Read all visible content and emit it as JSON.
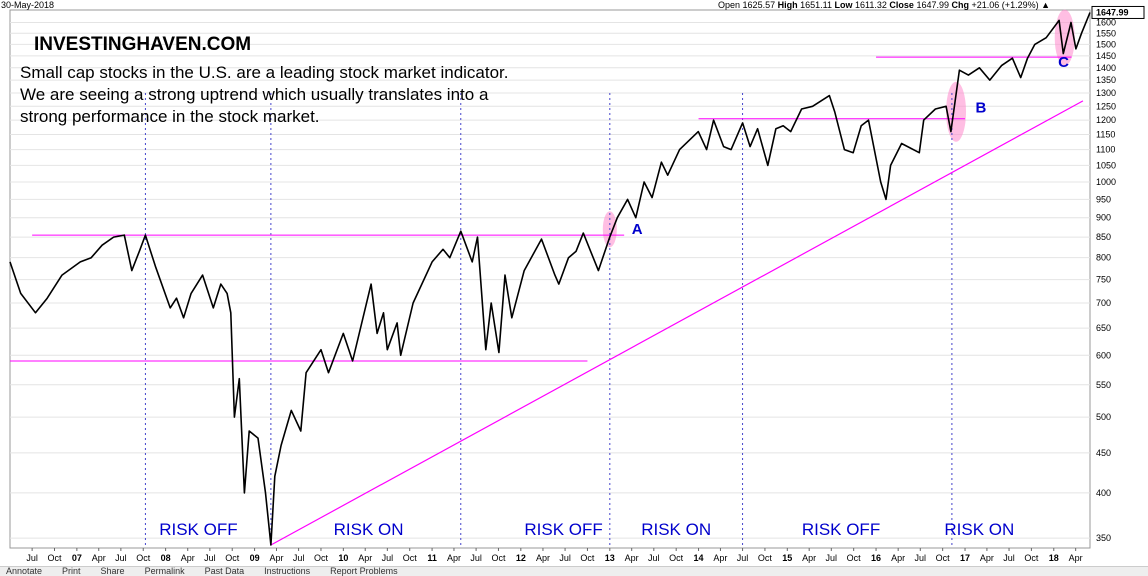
{
  "header": {
    "date": "30-May-2018",
    "open_label": "Open",
    "open": "1625.57",
    "high_label": "High",
    "high": "1651.11",
    "low_label": "Low",
    "low": "1611.32",
    "close_label": "Close",
    "close": "1647.99",
    "chg_label": "Chg",
    "chg": "+21.06 (+1.29%)",
    "up_arrow": "▲"
  },
  "brand": "INVESTINGHAVEN.COM",
  "subtitle": "Small cap stocks in the U.S. are a leading stock market indicator. We are seeing a strong uptrend which usually translates into a strong performance in the stock market.",
  "last_price_box": "1647.99",
  "toolbar": {
    "items": [
      "Annotate",
      "Print",
      "Share",
      "Permalink",
      "Past Data",
      "Instructions",
      "Report Problems"
    ]
  },
  "chart_data": {
    "type": "line",
    "title": "",
    "xlabel": "",
    "ylabel": "",
    "y_scale": "log",
    "ylim": [
      340,
      1660
    ],
    "xlim": [
      "2006-04-01",
      "2018-05-30"
    ],
    "y_ticks": [
      350,
      400,
      450,
      500,
      550,
      600,
      650,
      700,
      750,
      800,
      850,
      900,
      950,
      1000,
      1050,
      1100,
      1150,
      1200,
      1250,
      1300,
      1350,
      1400,
      1450,
      1500,
      1550,
      1600
    ],
    "x_tick_labels": [
      {
        "t": "2006-07-01",
        "label": "Jul",
        "major": false
      },
      {
        "t": "2006-10-01",
        "label": "Oct",
        "major": false
      },
      {
        "t": "2007-01-01",
        "label": "07",
        "major": true
      },
      {
        "t": "2007-04-01",
        "label": "Apr",
        "major": false
      },
      {
        "t": "2007-07-01",
        "label": "Jul",
        "major": false
      },
      {
        "t": "2007-10-01",
        "label": "Oct",
        "major": false
      },
      {
        "t": "2008-01-01",
        "label": "08",
        "major": true
      },
      {
        "t": "2008-04-01",
        "label": "Apr",
        "major": false
      },
      {
        "t": "2008-07-01",
        "label": "Jul",
        "major": false
      },
      {
        "t": "2008-10-01",
        "label": "Oct",
        "major": false
      },
      {
        "t": "2009-01-01",
        "label": "09",
        "major": true
      },
      {
        "t": "2009-04-01",
        "label": "Apr",
        "major": false
      },
      {
        "t": "2009-07-01",
        "label": "Jul",
        "major": false
      },
      {
        "t": "2009-10-01",
        "label": "Oct",
        "major": false
      },
      {
        "t": "2010-01-01",
        "label": "10",
        "major": true
      },
      {
        "t": "2010-04-01",
        "label": "Apr",
        "major": false
      },
      {
        "t": "2010-07-01",
        "label": "Jul",
        "major": false
      },
      {
        "t": "2010-10-01",
        "label": "Oct",
        "major": false
      },
      {
        "t": "2011-01-01",
        "label": "11",
        "major": true
      },
      {
        "t": "2011-04-01",
        "label": "Apr",
        "major": false
      },
      {
        "t": "2011-07-01",
        "label": "Jul",
        "major": false
      },
      {
        "t": "2011-10-01",
        "label": "Oct",
        "major": false
      },
      {
        "t": "2012-01-01",
        "label": "12",
        "major": true
      },
      {
        "t": "2012-04-01",
        "label": "Apr",
        "major": false
      },
      {
        "t": "2012-07-01",
        "label": "Jul",
        "major": false
      },
      {
        "t": "2012-10-01",
        "label": "Oct",
        "major": false
      },
      {
        "t": "2013-01-01",
        "label": "13",
        "major": true
      },
      {
        "t": "2013-04-01",
        "label": "Apr",
        "major": false
      },
      {
        "t": "2013-07-01",
        "label": "Jul",
        "major": false
      },
      {
        "t": "2013-10-01",
        "label": "Oct",
        "major": false
      },
      {
        "t": "2014-01-01",
        "label": "14",
        "major": true
      },
      {
        "t": "2014-04-01",
        "label": "Apr",
        "major": false
      },
      {
        "t": "2014-07-01",
        "label": "Jul",
        "major": false
      },
      {
        "t": "2014-10-01",
        "label": "Oct",
        "major": false
      },
      {
        "t": "2015-01-01",
        "label": "15",
        "major": true
      },
      {
        "t": "2015-04-01",
        "label": "Apr",
        "major": false
      },
      {
        "t": "2015-07-01",
        "label": "Jul",
        "major": false
      },
      {
        "t": "2015-10-01",
        "label": "Oct",
        "major": false
      },
      {
        "t": "2016-01-01",
        "label": "16",
        "major": true
      },
      {
        "t": "2016-04-01",
        "label": "Apr",
        "major": false
      },
      {
        "t": "2016-07-01",
        "label": "Jul",
        "major": false
      },
      {
        "t": "2016-10-01",
        "label": "Oct",
        "major": false
      },
      {
        "t": "2017-01-01",
        "label": "17",
        "major": true
      },
      {
        "t": "2017-04-01",
        "label": "Apr",
        "major": false
      },
      {
        "t": "2017-07-01",
        "label": "Jul",
        "major": false
      },
      {
        "t": "2017-10-01",
        "label": "Oct",
        "major": false
      },
      {
        "t": "2018-01-01",
        "label": "18",
        "major": true
      },
      {
        "t": "2018-04-01",
        "label": "Apr",
        "major": false
      }
    ],
    "series": [
      {
        "values": [
          [
            "2006-04-01",
            790
          ],
          [
            "2006-05-15",
            720
          ],
          [
            "2006-07-15",
            680
          ],
          [
            "2006-09-01",
            710
          ],
          [
            "2006-11-01",
            760
          ],
          [
            "2007-01-15",
            790
          ],
          [
            "2007-03-01",
            800
          ],
          [
            "2007-04-15",
            830
          ],
          [
            "2007-06-01",
            850
          ],
          [
            "2007-07-15",
            855
          ],
          [
            "2007-08-15",
            770
          ],
          [
            "2007-09-15",
            815
          ],
          [
            "2007-10-10",
            855
          ],
          [
            "2007-11-20",
            780
          ],
          [
            "2008-01-20",
            690
          ],
          [
            "2008-02-15",
            710
          ],
          [
            "2008-03-15",
            670
          ],
          [
            "2008-04-15",
            720
          ],
          [
            "2008-06-01",
            760
          ],
          [
            "2008-07-15",
            690
          ],
          [
            "2008-08-15",
            740
          ],
          [
            "2008-09-10",
            720
          ],
          [
            "2008-09-25",
            680
          ],
          [
            "2008-10-10",
            500
          ],
          [
            "2008-10-30",
            560
          ],
          [
            "2008-11-20",
            400
          ],
          [
            "2008-12-10",
            480
          ],
          [
            "2009-01-15",
            470
          ],
          [
            "2009-02-15",
            400
          ],
          [
            "2009-03-09",
            343
          ],
          [
            "2009-03-25",
            420
          ],
          [
            "2009-04-20",
            460
          ],
          [
            "2009-06-01",
            510
          ],
          [
            "2009-07-10",
            480
          ],
          [
            "2009-08-01",
            570
          ],
          [
            "2009-10-01",
            610
          ],
          [
            "2009-11-01",
            570
          ],
          [
            "2010-01-01",
            640
          ],
          [
            "2010-02-08",
            590
          ],
          [
            "2010-04-25",
            740
          ],
          [
            "2010-05-20",
            640
          ],
          [
            "2010-06-15",
            680
          ],
          [
            "2010-07-01",
            610
          ],
          [
            "2010-08-10",
            660
          ],
          [
            "2010-08-25",
            600
          ],
          [
            "2010-10-15",
            700
          ],
          [
            "2011-01-01",
            790
          ],
          [
            "2011-02-15",
            820
          ],
          [
            "2011-03-15",
            800
          ],
          [
            "2011-04-29",
            865
          ],
          [
            "2011-06-15",
            790
          ],
          [
            "2011-07-07",
            850
          ],
          [
            "2011-08-10",
            610
          ],
          [
            "2011-09-01",
            700
          ],
          [
            "2011-10-03",
            605
          ],
          [
            "2011-10-28",
            760
          ],
          [
            "2011-11-25",
            670
          ],
          [
            "2012-01-15",
            770
          ],
          [
            "2012-03-26",
            845
          ],
          [
            "2012-05-20",
            760
          ],
          [
            "2012-06-05",
            740
          ],
          [
            "2012-07-15",
            800
          ],
          [
            "2012-08-15",
            815
          ],
          [
            "2012-09-14",
            860
          ],
          [
            "2012-11-15",
            770
          ],
          [
            "2012-12-31",
            849
          ],
          [
            "2013-02-01",
            900
          ],
          [
            "2013-03-15",
            950
          ],
          [
            "2013-04-18",
            900
          ],
          [
            "2013-05-22",
            1000
          ],
          [
            "2013-06-24",
            955
          ],
          [
            "2013-08-01",
            1060
          ],
          [
            "2013-08-27",
            1020
          ],
          [
            "2013-10-15",
            1100
          ],
          [
            "2013-12-31",
            1160
          ],
          [
            "2014-02-03",
            1100
          ],
          [
            "2014-03-04",
            1200
          ],
          [
            "2014-04-14",
            1110
          ],
          [
            "2014-05-15",
            1100
          ],
          [
            "2014-07-01",
            1190
          ],
          [
            "2014-08-01",
            1110
          ],
          [
            "2014-09-01",
            1170
          ],
          [
            "2014-10-13",
            1050
          ],
          [
            "2014-11-15",
            1170
          ],
          [
            "2014-12-15",
            1180
          ],
          [
            "2015-01-15",
            1160
          ],
          [
            "2015-03-01",
            1240
          ],
          [
            "2015-04-15",
            1250
          ],
          [
            "2015-06-23",
            1290
          ],
          [
            "2015-07-15",
            1230
          ],
          [
            "2015-08-24",
            1100
          ],
          [
            "2015-09-29",
            1090
          ],
          [
            "2015-11-01",
            1180
          ],
          [
            "2015-12-01",
            1200
          ],
          [
            "2016-01-20",
            1000
          ],
          [
            "2016-02-11",
            950
          ],
          [
            "2016-03-01",
            1050
          ],
          [
            "2016-04-15",
            1120
          ],
          [
            "2016-06-27",
            1090
          ],
          [
            "2016-07-15",
            1200
          ],
          [
            "2016-09-01",
            1240
          ],
          [
            "2016-10-15",
            1250
          ],
          [
            "2016-11-04",
            1160
          ],
          [
            "2016-12-09",
            1390
          ],
          [
            "2017-01-15",
            1370
          ],
          [
            "2017-03-01",
            1400
          ],
          [
            "2017-04-13",
            1350
          ],
          [
            "2017-06-01",
            1410
          ],
          [
            "2017-07-15",
            1440
          ],
          [
            "2017-08-18",
            1360
          ],
          [
            "2017-09-15",
            1440
          ],
          [
            "2017-10-15",
            1500
          ],
          [
            "2017-12-01",
            1530
          ],
          [
            "2018-01-23",
            1610
          ],
          [
            "2018-02-09",
            1460
          ],
          [
            "2018-03-13",
            1600
          ],
          [
            "2018-04-02",
            1480
          ],
          [
            "2018-04-25",
            1550
          ],
          [
            "2018-05-30",
            1647.99
          ]
        ]
      }
    ],
    "horizontal_lines": [
      {
        "y": 855,
        "from": "2006-07-01",
        "to": "2013-03-01"
      },
      {
        "y": 590,
        "from": "2006-04-01",
        "to": "2012-10-01"
      },
      {
        "y": 1205,
        "from": "2014-01-01",
        "to": "2017-01-01"
      },
      {
        "y": 1445,
        "from": "2016-01-01",
        "to": "2018-03-15"
      }
    ],
    "trendline": {
      "from": [
        "2009-03-09",
        343
      ],
      "to": [
        "2018-05-01",
        1270
      ]
    },
    "vertical_lines": [
      "2007-10-10",
      "2009-03-09",
      "2011-04-29",
      "2013-01-01",
      "2014-07-01",
      "2016-11-08"
    ],
    "regimes": [
      {
        "label": "RISK OFF",
        "t": "2008-05-15"
      },
      {
        "label": "RISK ON",
        "t": "2010-04-15"
      },
      {
        "label": "RISK OFF",
        "t": "2012-06-25"
      },
      {
        "label": "RISK ON",
        "t": "2013-10-01"
      },
      {
        "label": "RISK OFF",
        "t": "2015-08-10"
      },
      {
        "label": "RISK ON",
        "t": "2017-03-01"
      }
    ],
    "breakouts": [
      {
        "label": "A",
        "t": "2013-01-01",
        "y": 870
      },
      {
        "label": "B",
        "t": "2016-12-01",
        "y": 1245
      },
      {
        "label": "C",
        "t": "2018-03-01",
        "y": 1510
      }
    ],
    "colors": {
      "price": "#000000",
      "level_lines": "#ff00ff",
      "trendline": "#ff00ff",
      "divider_lines": "#4444cc",
      "regime_text": "#0000cc",
      "highlight": "#ff88cc",
      "grid": "#e4e4e4"
    }
  }
}
